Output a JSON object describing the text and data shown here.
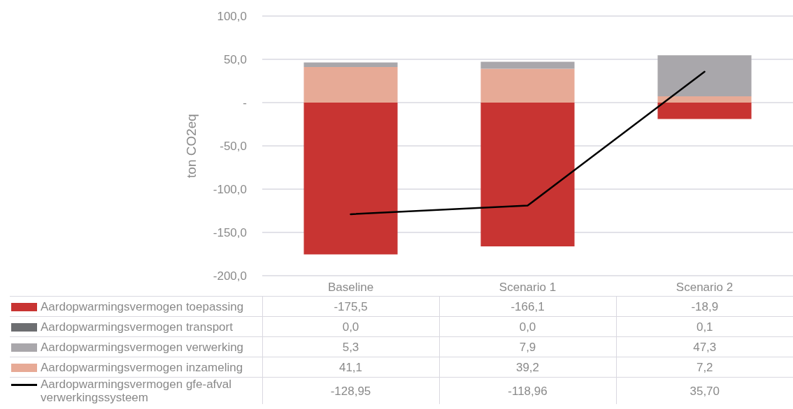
{
  "chart_data": {
    "type": "bar",
    "stacked": true,
    "ylabel": "ton CO2eq",
    "categories": [
      "Baseline",
      "Scenario 1",
      "Scenario 2"
    ],
    "series": [
      {
        "name": "Aardopwarmingsvermogen inzameling",
        "color": "#e7aa96",
        "values": [
          41.1,
          39.2,
          7.2
        ],
        "value_labels": [
          "41,1",
          "39,2",
          "7,2"
        ]
      },
      {
        "name": "Aardopwarmingsvermogen verwerking",
        "color": "#a9a7ab",
        "values": [
          5.3,
          7.9,
          47.3
        ],
        "value_labels": [
          "5,3",
          "7,9",
          "47,3"
        ]
      },
      {
        "name": "Aardopwarmingsvermogen transport",
        "color": "#6d6e71",
        "values": [
          0,
          0,
          0.1
        ],
        "value_labels": [
          "0,0",
          "0,0",
          "0,1"
        ]
      },
      {
        "name": "Aardopwarmingsvermogen toepassing",
        "color": "#c83432",
        "values": [
          -175.5,
          -166.1,
          -18.9
        ],
        "value_labels": [
          "-175,5",
          "-166,1",
          "-18,9"
        ]
      },
      {
        "name": "Aardopwarmingsvermogen gfe-afval verwerkingssysteem",
        "type": "line",
        "color": "#000000",
        "values": [
          -128.95,
          -118.96,
          35.7
        ],
        "value_labels": [
          "-128,95",
          "-118,96",
          "35,70"
        ]
      }
    ],
    "ylim": [
      -200,
      100
    ],
    "yticks": [
      {
        "value": -200,
        "label": "-200,0"
      },
      {
        "value": -150,
        "label": "-150,0"
      },
      {
        "value": -100,
        "label": "-100,0"
      },
      {
        "value": -50,
        "label": "-50,0"
      },
      {
        "value": 0,
        "label": "-"
      },
      {
        "value": 50,
        "label": "50,0"
      },
      {
        "value": 100,
        "label": "100,0"
      }
    ],
    "grid": "y",
    "legend": "bottom",
    "marker": "none",
    "line_style": "solid"
  }
}
